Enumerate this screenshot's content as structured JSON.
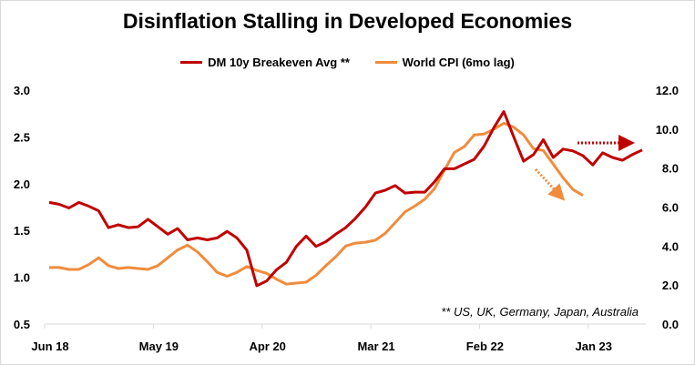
{
  "chart_data": {
    "type": "line",
    "title": "Disinflation Stalling in Developed Economies",
    "x": [
      "Jun 18",
      "Jul 18",
      "Aug 18",
      "Sep 18",
      "Oct 18",
      "Nov 18",
      "Dec 18",
      "Jan 19",
      "Feb 19",
      "Mar 19",
      "Apr 19",
      "May 19",
      "Jun 19",
      "Jul 19",
      "Aug 19",
      "Sep 19",
      "Oct 19",
      "Nov 19",
      "Dec 19",
      "Jan 20",
      "Feb 20",
      "Mar 20",
      "Apr 20",
      "May 20",
      "Jun 20",
      "Jul 20",
      "Aug 20",
      "Sep 20",
      "Oct 20",
      "Nov 20",
      "Dec 20",
      "Jan 21",
      "Feb 21",
      "Mar 21",
      "Apr 21",
      "May 21",
      "Jun 21",
      "Jul 21",
      "Aug 21",
      "Sep 21",
      "Oct 21",
      "Nov 21",
      "Dec 21",
      "Jan 22",
      "Feb 22",
      "Mar 22",
      "Apr 22",
      "May 22",
      "Jun 22",
      "Jul 22",
      "Aug 22",
      "Sep 22",
      "Oct 22",
      "Nov 22",
      "Dec 22",
      "Jan 23",
      "Feb 23",
      "Mar 23",
      "Apr 23",
      "May 23",
      "Jun 23"
    ],
    "x_tick_labels": [
      "Jun 18",
      "May 19",
      "Apr 20",
      "Mar 21",
      "Feb 22",
      "Jan 23"
    ],
    "y_left": {
      "range": [
        0.5,
        3.0
      ],
      "ticks": [
        "0.5",
        "1.0",
        "1.5",
        "2.0",
        "2.5",
        "3.0"
      ]
    },
    "y_right": {
      "range": [
        0,
        12
      ],
      "ticks": [
        "0.0",
        "2.0",
        "4.0",
        "6.0",
        "8.0",
        "10.0",
        "12.0"
      ]
    },
    "grid": false,
    "legend_position": "top",
    "series": [
      {
        "name": "DM 10y Breakeven Avg **",
        "axis": "left",
        "color": "#c00000",
        "values": [
          1.8,
          1.78,
          1.74,
          1.8,
          1.76,
          1.71,
          1.53,
          1.56,
          1.53,
          1.54,
          1.62,
          1.54,
          1.46,
          1.52,
          1.4,
          1.42,
          1.4,
          1.42,
          1.49,
          1.42,
          1.29,
          0.91,
          0.96,
          1.08,
          1.16,
          1.33,
          1.44,
          1.33,
          1.38,
          1.46,
          1.53,
          1.63,
          1.75,
          1.9,
          1.93,
          1.98,
          1.9,
          1.91,
          1.91,
          2.02,
          2.16,
          2.16,
          2.21,
          2.26,
          2.4,
          2.6,
          2.77,
          2.5,
          2.24,
          2.31,
          2.47,
          2.28,
          2.37,
          2.35,
          2.3,
          2.2,
          2.33,
          2.28,
          2.25,
          2.31,
          2.36
        ]
      },
      {
        "name": "World CPI (6mo lag)",
        "axis": "right",
        "color": "#f08c3c",
        "values": [
          2.9,
          2.9,
          2.8,
          2.8,
          3.05,
          3.4,
          3.0,
          2.85,
          2.9,
          2.85,
          2.8,
          3.0,
          3.4,
          3.8,
          4.05,
          3.7,
          3.2,
          2.65,
          2.45,
          2.65,
          2.95,
          2.75,
          2.6,
          2.3,
          2.05,
          2.1,
          2.15,
          2.5,
          3.0,
          3.45,
          4.0,
          4.15,
          4.2,
          4.3,
          4.65,
          5.2,
          5.75,
          6.05,
          6.4,
          6.95,
          7.9,
          8.8,
          9.1,
          9.7,
          9.75,
          10.0,
          10.3,
          10.1,
          9.7,
          9.0,
          8.9,
          8.2,
          7.5,
          6.9,
          6.6,
          null,
          null,
          null,
          null,
          null,
          null
        ]
      }
    ],
    "annotations": [
      "** US, UK, Germany, Japan, Australia"
    ]
  }
}
